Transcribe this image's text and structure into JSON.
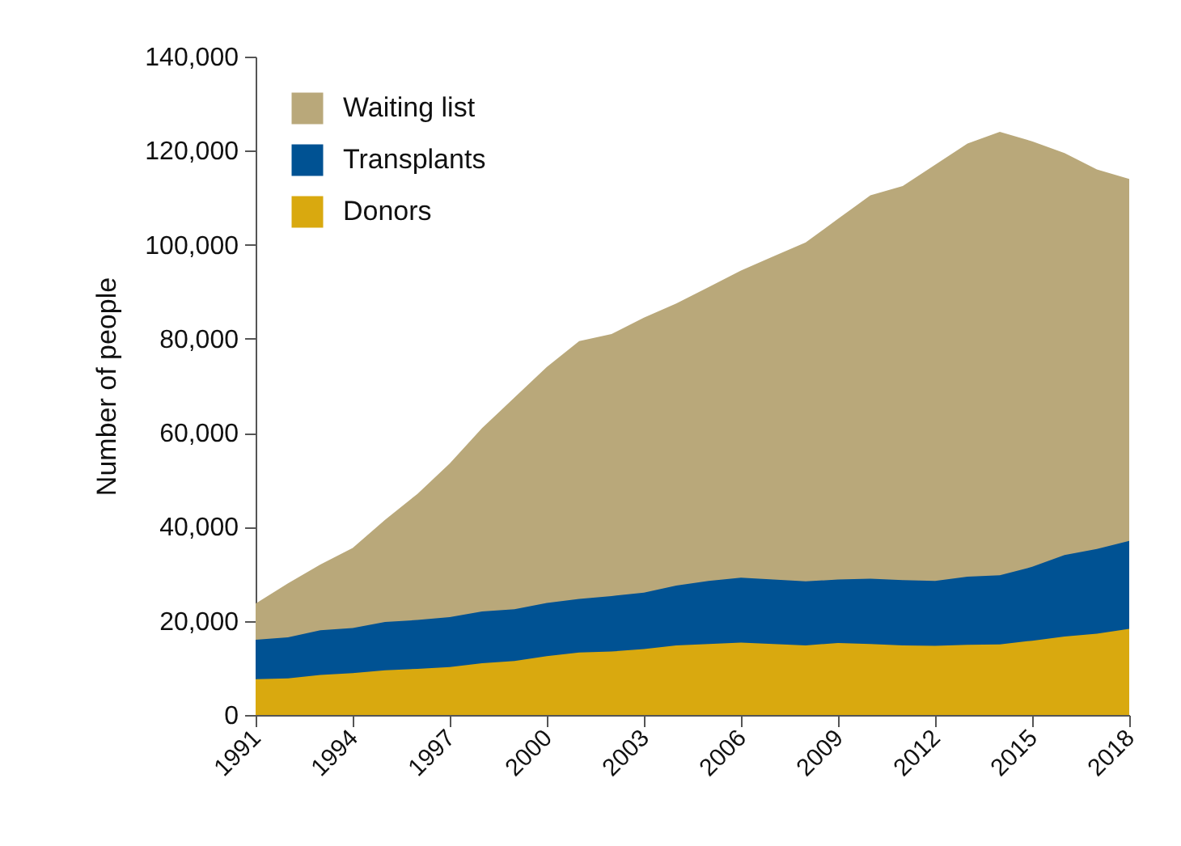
{
  "chart_data": {
    "type": "area",
    "ylabel": "Number of people",
    "legend": "top left",
    "x": [
      1991,
      1992,
      1993,
      1994,
      1995,
      1996,
      1997,
      1998,
      1999,
      2000,
      2001,
      2002,
      2003,
      2004,
      2005,
      2006,
      2007,
      2008,
      2009,
      2010,
      2011,
      2012,
      2013,
      2014,
      2015,
      2016,
      2017,
      2018
    ],
    "xlim": [
      1991,
      2018
    ],
    "xticks": [
      1991,
      1994,
      1997,
      2000,
      2003,
      2006,
      2009,
      2012,
      2015,
      2018
    ],
    "ylim": [
      0,
      140000
    ],
    "yticks": [
      0,
      {
        "value": 20000,
        "label": "20,000"
      },
      {
        "value": 40000,
        "label": "40,000"
      },
      {
        "value": 60000,
        "label": "60,000"
      },
      {
        "value": 80000,
        "label": "80,000"
      },
      {
        "value": 100000,
        "label": "100,000"
      },
      {
        "value": 120000,
        "label": "120,000"
      },
      {
        "value": 140000,
        "label": "140,000"
      }
    ],
    "series": [
      {
        "name": "Waiting list",
        "color": "#b9a87a",
        "values": [
          23700,
          28000,
          32000,
          35500,
          41500,
          47000,
          53500,
          61000,
          67500,
          74000,
          79500,
          81000,
          84500,
          87500,
          91000,
          94500,
          97500,
          100500,
          105500,
          110500,
          112500,
          117000,
          121500,
          124000,
          122000,
          119500,
          116000,
          114000
        ]
      },
      {
        "name": "Transplants",
        "color": "#005293",
        "values": [
          16000,
          16500,
          18000,
          18500,
          19800,
          20200,
          20800,
          22000,
          22500,
          23800,
          24700,
          25300,
          26000,
          27500,
          28500,
          29200,
          28800,
          28400,
          28800,
          29000,
          28700,
          28500,
          29400,
          29700,
          31500,
          34000,
          35300,
          37000
        ]
      },
      {
        "name": "Donors",
        "color": "#d9a90f",
        "values": [
          7600,
          7800,
          8500,
          8900,
          9500,
          9800,
          10200,
          11000,
          11500,
          12500,
          13300,
          13500,
          14000,
          14800,
          15100,
          15400,
          15100,
          14800,
          15300,
          15100,
          14800,
          14700,
          14900,
          15000,
          15800,
          16700,
          17300,
          18300
        ]
      }
    ]
  }
}
